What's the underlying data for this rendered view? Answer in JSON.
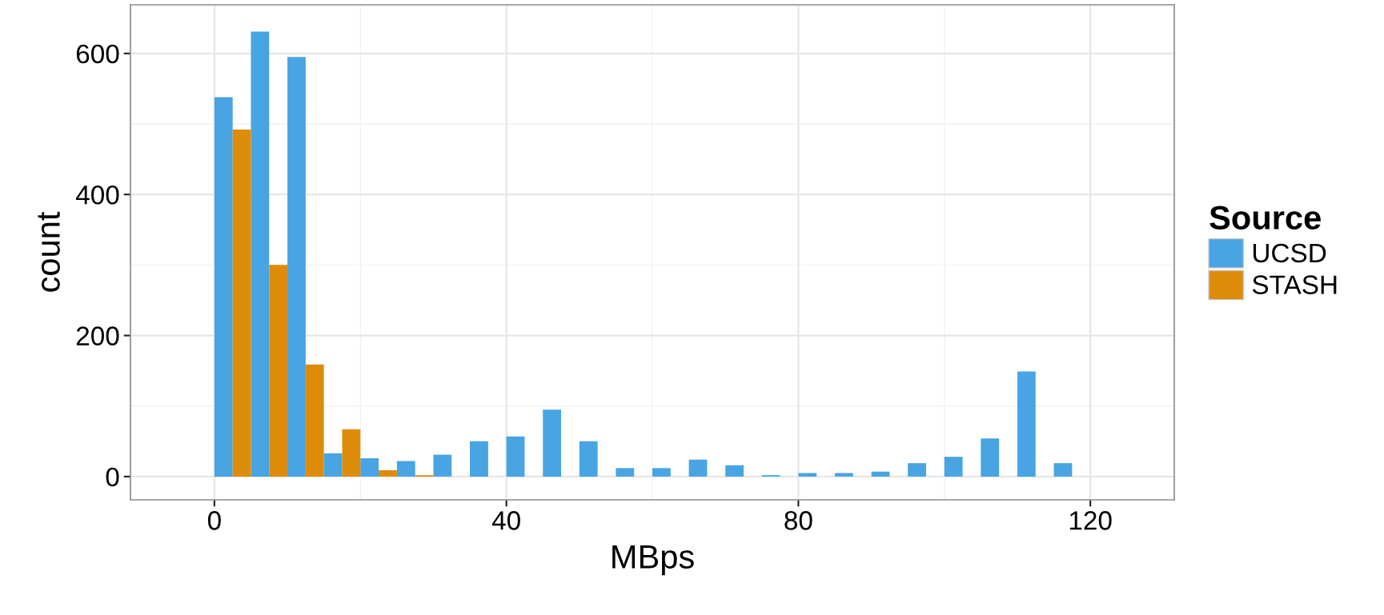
{
  "chart_data": {
    "type": "histogram",
    "xlabel": "MBps",
    "ylabel": "count",
    "legend_title": "Source",
    "legend": "right",
    "bins": [
      0,
      5,
      10,
      15,
      20,
      25,
      30,
      35,
      40,
      45,
      50,
      55,
      60,
      65,
      70,
      75,
      80,
      85,
      90,
      95,
      100,
      105,
      110,
      115,
      120
    ],
    "series": [
      {
        "name": "UCSD",
        "color": "#48a4e2",
        "values": [
          538,
          631,
          595,
          33,
          26,
          22,
          31,
          50,
          57,
          95,
          50,
          12,
          12,
          24,
          16,
          2,
          5,
          5,
          7,
          19,
          28,
          54,
          149,
          19
        ]
      },
      {
        "name": "STASH",
        "color": "#dd8c0a",
        "values": [
          492,
          300,
          159,
          67,
          9,
          2,
          0,
          0,
          0,
          0,
          0,
          0,
          0,
          0,
          0,
          0,
          0,
          0,
          0,
          0,
          0,
          0,
          0,
          0
        ]
      }
    ],
    "xlim": [
      -11.5,
      131.5
    ],
    "ylim": [
      -33,
      669
    ],
    "xticks": [
      0,
      40,
      80,
      120
    ],
    "yticks": [
      0,
      200,
      400,
      600
    ],
    "grid": true
  }
}
